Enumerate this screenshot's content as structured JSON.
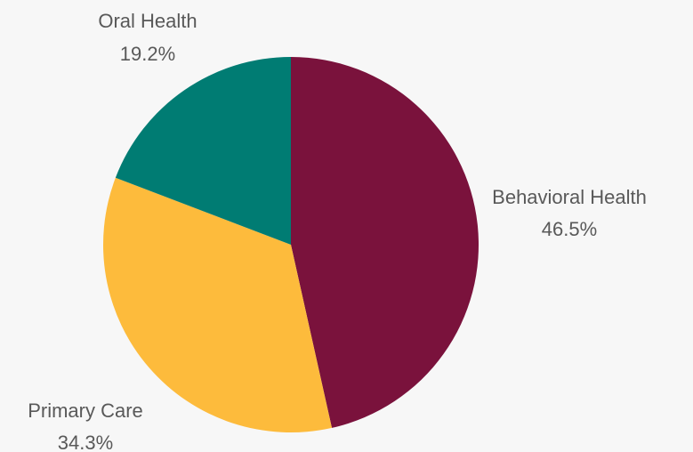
{
  "chart_data": {
    "type": "pie",
    "title": "",
    "slices": [
      {
        "name": "Behavioral Health",
        "value": 46.5,
        "label": "46.5%",
        "color": "#7a123c"
      },
      {
        "name": "Primary Care",
        "value": 34.3,
        "label": "34.3%",
        "color": "#fdbb3c"
      },
      {
        "name": "Oral Health",
        "value": 19.2,
        "label": "19.2%",
        "color": "#007c73"
      }
    ],
    "start": "12 o'clock",
    "direction": "clockwise",
    "legend": "none",
    "labels": "outside"
  },
  "colors": {
    "background": "#f7f7f7",
    "label_text": "#595959"
  }
}
